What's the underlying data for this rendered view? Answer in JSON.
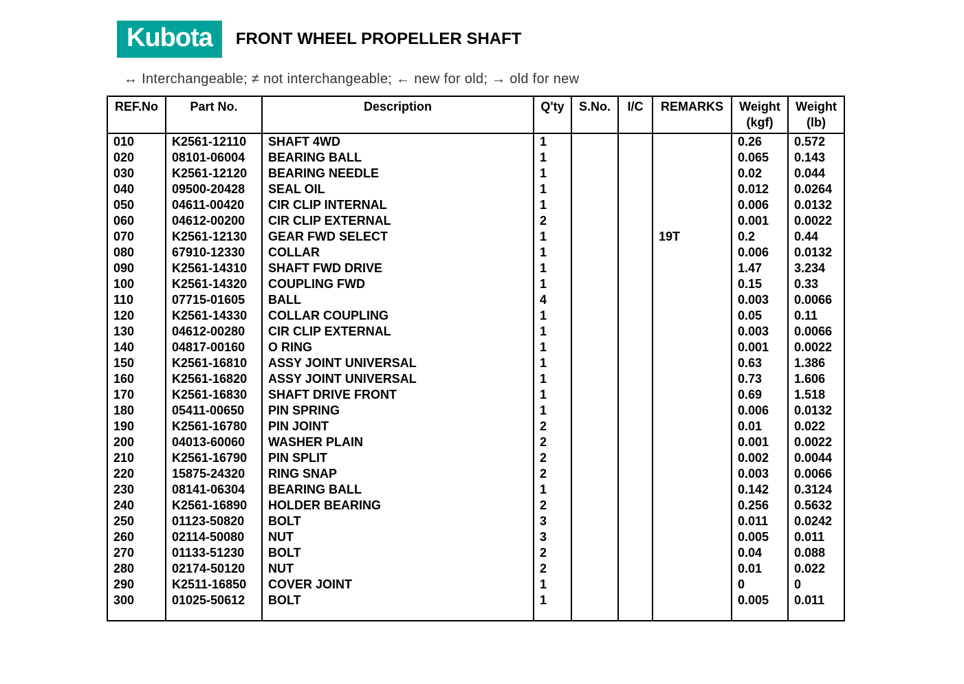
{
  "brand": "Kubota",
  "title": "FRONT WHEEL PROPELLER SHAFT",
  "legend": "↔ Interchangeable;    ≠ not interchangeable;    ← new for old;    → old for new",
  "colors": {
    "brand_bg": "#00a29a",
    "brand_text": "#ffffff",
    "page_bg": "#ffffff",
    "text": "#000000",
    "border": "#000000"
  },
  "columns": [
    {
      "key": "ref",
      "h1": "REF.No",
      "h2": ""
    },
    {
      "key": "part",
      "h1": "Part No.",
      "h2": ""
    },
    {
      "key": "desc",
      "h1": "Description",
      "h2": ""
    },
    {
      "key": "qty",
      "h1": "Q'ty",
      "h2": ""
    },
    {
      "key": "sno",
      "h1": "S.No.",
      "h2": ""
    },
    {
      "key": "ic",
      "h1": "I/C",
      "h2": ""
    },
    {
      "key": "rem",
      "h1": "REMARKS",
      "h2": ""
    },
    {
      "key": "wkgf",
      "h1": "Weight",
      "h2": "(kgf)"
    },
    {
      "key": "wlb",
      "h1": "Weight",
      "h2": "(lb)"
    }
  ],
  "rows": [
    {
      "ref": "010",
      "part": "K2561-12110",
      "desc": "SHAFT 4WD",
      "qty": "1",
      "sno": "",
      "ic": "",
      "rem": "",
      "wkgf": "0.26",
      "wlb": "0.572"
    },
    {
      "ref": "020",
      "part": "08101-06004",
      "desc": "BEARING BALL",
      "qty": "1",
      "sno": "",
      "ic": "",
      "rem": "",
      "wkgf": "0.065",
      "wlb": "0.143"
    },
    {
      "ref": "030",
      "part": "K2561-12120",
      "desc": "BEARING NEEDLE",
      "qty": "1",
      "sno": "",
      "ic": "",
      "rem": "",
      "wkgf": "0.02",
      "wlb": "0.044"
    },
    {
      "ref": "040",
      "part": "09500-20428",
      "desc": "SEAL OIL",
      "qty": "1",
      "sno": "",
      "ic": "",
      "rem": "",
      "wkgf": "0.012",
      "wlb": "0.0264"
    },
    {
      "ref": "050",
      "part": "04611-00420",
      "desc": "CIR CLIP INTERNAL",
      "qty": "1",
      "sno": "",
      "ic": "",
      "rem": "",
      "wkgf": "0.006",
      "wlb": "0.0132"
    },
    {
      "ref": "060",
      "part": "04612-00200",
      "desc": "CIR CLIP EXTERNAL",
      "qty": "2",
      "sno": "",
      "ic": "",
      "rem": "",
      "wkgf": "0.001",
      "wlb": "0.0022"
    },
    {
      "ref": "070",
      "part": "K2561-12130",
      "desc": "GEAR FWD SELECT",
      "qty": "1",
      "sno": "",
      "ic": "",
      "rem": "19T",
      "wkgf": "0.2",
      "wlb": "0.44"
    },
    {
      "ref": "080",
      "part": "67910-12330",
      "desc": "COLLAR",
      "qty": "1",
      "sno": "",
      "ic": "",
      "rem": "",
      "wkgf": "0.006",
      "wlb": "0.0132"
    },
    {
      "ref": "090",
      "part": "K2561-14310",
      "desc": "SHAFT FWD DRIVE",
      "qty": "1",
      "sno": "",
      "ic": "",
      "rem": "",
      "wkgf": "1.47",
      "wlb": "3.234"
    },
    {
      "ref": "100",
      "part": "K2561-14320",
      "desc": "COUPLING FWD",
      "qty": "1",
      "sno": "",
      "ic": "",
      "rem": "",
      "wkgf": "0.15",
      "wlb": "0.33"
    },
    {
      "ref": "110",
      "part": "07715-01605",
      "desc": "BALL",
      "qty": "4",
      "sno": "",
      "ic": "",
      "rem": "",
      "wkgf": "0.003",
      "wlb": "0.0066"
    },
    {
      "ref": "120",
      "part": "K2561-14330",
      "desc": "COLLAR COUPLING",
      "qty": "1",
      "sno": "",
      "ic": "",
      "rem": "",
      "wkgf": "0.05",
      "wlb": "0.11"
    },
    {
      "ref": "130",
      "part": "04612-00280",
      "desc": "CIR CLIP EXTERNAL",
      "qty": "1",
      "sno": "",
      "ic": "",
      "rem": "",
      "wkgf": "0.003",
      "wlb": "0.0066"
    },
    {
      "ref": "140",
      "part": "04817-00160",
      "desc": "O RING",
      "qty": "1",
      "sno": "",
      "ic": "",
      "rem": "",
      "wkgf": "0.001",
      "wlb": "0.0022"
    },
    {
      "ref": "150",
      "part": "K2561-16810",
      "desc": "ASSY JOINT UNIVERSAL",
      "qty": "1",
      "sno": "",
      "ic": "",
      "rem": "",
      "wkgf": "0.63",
      "wlb": "1.386"
    },
    {
      "ref": "160",
      "part": "K2561-16820",
      "desc": "ASSY JOINT UNIVERSAL",
      "qty": "1",
      "sno": "",
      "ic": "",
      "rem": "",
      "wkgf": "0.73",
      "wlb": "1.606"
    },
    {
      "ref": "170",
      "part": "K2561-16830",
      "desc": "SHAFT DRIVE FRONT",
      "qty": "1",
      "sno": "",
      "ic": "",
      "rem": "",
      "wkgf": "0.69",
      "wlb": "1.518"
    },
    {
      "ref": "180",
      "part": "05411-00650",
      "desc": "PIN SPRING",
      "qty": "1",
      "sno": "",
      "ic": "",
      "rem": "",
      "wkgf": "0.006",
      "wlb": "0.0132"
    },
    {
      "ref": "190",
      "part": "K2561-16780",
      "desc": "PIN JOINT",
      "qty": "2",
      "sno": "",
      "ic": "",
      "rem": "",
      "wkgf": "0.01",
      "wlb": "0.022"
    },
    {
      "ref": "200",
      "part": "04013-60060",
      "desc": "WASHER PLAIN",
      "qty": "2",
      "sno": "",
      "ic": "",
      "rem": "",
      "wkgf": "0.001",
      "wlb": "0.0022"
    },
    {
      "ref": "210",
      "part": "K2561-16790",
      "desc": "PIN SPLIT",
      "qty": "2",
      "sno": "",
      "ic": "",
      "rem": "",
      "wkgf": "0.002",
      "wlb": "0.0044"
    },
    {
      "ref": "220",
      "part": "15875-24320",
      "desc": "RING SNAP",
      "qty": "2",
      "sno": "",
      "ic": "",
      "rem": "",
      "wkgf": "0.003",
      "wlb": "0.0066"
    },
    {
      "ref": "230",
      "part": "08141-06304",
      "desc": "BEARING BALL",
      "qty": "1",
      "sno": "",
      "ic": "",
      "rem": "",
      "wkgf": "0.142",
      "wlb": "0.3124"
    },
    {
      "ref": "240",
      "part": "K2561-16890",
      "desc": "HOLDER BEARING",
      "qty": "2",
      "sno": "",
      "ic": "",
      "rem": "",
      "wkgf": "0.256",
      "wlb": "0.5632"
    },
    {
      "ref": "250",
      "part": "01123-50820",
      "desc": "BOLT",
      "qty": "3",
      "sno": "",
      "ic": "",
      "rem": "",
      "wkgf": "0.011",
      "wlb": "0.0242"
    },
    {
      "ref": "260",
      "part": "02114-50080",
      "desc": "NUT",
      "qty": "3",
      "sno": "",
      "ic": "",
      "rem": "",
      "wkgf": "0.005",
      "wlb": "0.011"
    },
    {
      "ref": "270",
      "part": "01133-51230",
      "desc": "BOLT",
      "qty": "2",
      "sno": "",
      "ic": "",
      "rem": "",
      "wkgf": "0.04",
      "wlb": "0.088"
    },
    {
      "ref": "280",
      "part": "02174-50120",
      "desc": "NUT",
      "qty": "2",
      "sno": "",
      "ic": "",
      "rem": "",
      "wkgf": "0.01",
      "wlb": "0.022"
    },
    {
      "ref": "290",
      "part": "K2511-16850",
      "desc": "COVER JOINT",
      "qty": "1",
      "sno": "",
      "ic": "",
      "rem": "",
      "wkgf": "0",
      "wlb": "0"
    },
    {
      "ref": "300",
      "part": "01025-50612",
      "desc": "BOLT",
      "qty": "1",
      "sno": "",
      "ic": "",
      "rem": "",
      "wkgf": "0.005",
      "wlb": "0.011"
    }
  ]
}
